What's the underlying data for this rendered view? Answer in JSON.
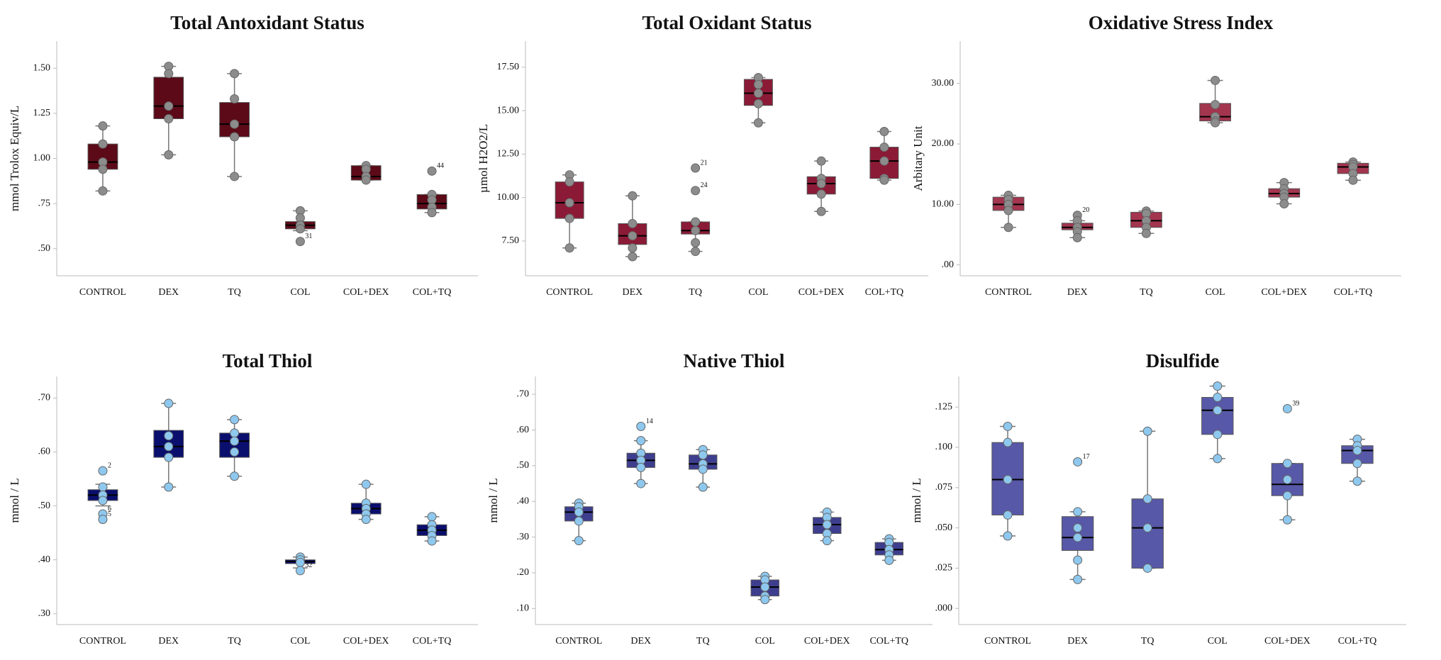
{
  "chart_data": [
    {
      "type": "box",
      "title": "Total Antoxidant Status",
      "ylabel": "mmol Trolox Equiv/L",
      "color": "#5c0a18",
      "point_color": "#8c8c8c",
      "categories": [
        "CONTROL",
        "DEX",
        "TQ",
        "COL",
        "COL+DEX",
        "COL+TQ"
      ],
      "ylim": [
        0.35,
        1.65
      ],
      "yticks": [
        {
          "value": 0.5,
          "label": ".50"
        },
        {
          "value": 0.75,
          "label": ".75"
        },
        {
          "value": 1,
          "label": "1.00"
        },
        {
          "value": 1.25,
          "label": "1.25"
        },
        {
          "value": 1.5,
          "label": "1.50"
        }
      ],
      "boxes": [
        {
          "low": 0.82,
          "q1": 0.94,
          "median": 0.98,
          "q3": 1.08,
          "high": 1.18
        },
        {
          "low": 1.02,
          "q1": 1.22,
          "median": 1.29,
          "q3": 1.45,
          "high": 1.51
        },
        {
          "low": 0.9,
          "q1": 1.12,
          "median": 1.19,
          "q3": 1.31,
          "high": 1.47
        },
        {
          "low": 0.6,
          "q1": 0.61,
          "median": 0.63,
          "q3": 0.65,
          "high": 0.71
        },
        {
          "low": 0.88,
          "q1": 0.88,
          "median": 0.9,
          "q3": 0.96,
          "high": 0.96
        },
        {
          "low": 0.7,
          "q1": 0.72,
          "median": 0.75,
          "q3": 0.8,
          "high": 0.8
        }
      ],
      "points": [
        [
          1.18,
          1.08,
          0.98,
          0.94,
          0.82
        ],
        [
          1.51,
          1.47,
          1.29,
          1.22,
          1.02
        ],
        [
          1.47,
          1.33,
          1.19,
          1.12,
          0.9
        ],
        [
          0.71,
          0.67,
          0.63,
          0.61,
          0.54
        ],
        [
          0.96,
          0.94,
          0.9,
          0.88
        ],
        [
          0.93,
          0.8,
          0.77,
          0.73,
          0.7
        ]
      ],
      "point_labels": [
        [
          null,
          null,
          null,
          null,
          null
        ],
        [
          null,
          null,
          null,
          null,
          null
        ],
        [
          null,
          null,
          null,
          null,
          null
        ],
        [
          null,
          null,
          null,
          null,
          "31"
        ],
        [
          null,
          null,
          null,
          null
        ],
        [
          "44",
          null,
          null,
          null,
          null
        ]
      ]
    },
    {
      "type": "box",
      "title": "Total Oxidant Status",
      "ylabel": "µmol H2O2/L",
      "color": "#8b1a36",
      "point_color": "#8c8c8c",
      "categories": [
        "CONTROL",
        "DEX",
        "TQ",
        "COL",
        "COL+DEX",
        "COL+TQ"
      ],
      "ylim": [
        5.5,
        19
      ],
      "yticks": [
        {
          "value": 7.5,
          "label": "7.50"
        },
        {
          "value": 10,
          "label": "10.00"
        },
        {
          "value": 12.5,
          "label": "12.50"
        },
        {
          "value": 15,
          "label": "15.00"
        },
        {
          "value": 17.5,
          "label": "17.50"
        }
      ],
      "boxes": [
        {
          "low": 7.1,
          "q1": 8.8,
          "median": 9.7,
          "q3": 10.9,
          "high": 11.3
        },
        {
          "low": 6.6,
          "q1": 7.3,
          "median": 7.8,
          "q3": 8.5,
          "high": 10.1
        },
        {
          "low": 6.9,
          "q1": 7.9,
          "median": 8.1,
          "q3": 8.6,
          "high": 8.6
        },
        {
          "low": 14.3,
          "q1": 15.3,
          "median": 16,
          "q3": 16.8,
          "high": 16.9
        },
        {
          "low": 9.2,
          "q1": 10.2,
          "median": 10.8,
          "q3": 11.2,
          "high": 12.1
        },
        {
          "low": 11,
          "q1": 11.1,
          "median": 12.1,
          "q3": 12.9,
          "high": 13.8
        }
      ],
      "points": [
        [
          11.3,
          10.9,
          9.7,
          8.8,
          7.1
        ],
        [
          10.1,
          8.5,
          7.8,
          7.1,
          6.6
        ],
        [
          11.7,
          10.4,
          8.6,
          8.1,
          7.4,
          6.9
        ],
        [
          16.9,
          16.5,
          16,
          15.4,
          14.3
        ],
        [
          12.1,
          11.1,
          10.8,
          10.2,
          9.2
        ],
        [
          13.8,
          12.9,
          12.1,
          11.1,
          11
        ]
      ],
      "point_labels": [
        [
          null,
          null,
          null,
          null,
          null
        ],
        [
          null,
          null,
          null,
          null,
          null
        ],
        [
          "21",
          "24",
          null,
          null,
          null,
          null
        ],
        [
          null,
          null,
          null,
          null,
          null
        ],
        [
          null,
          null,
          null,
          null,
          null
        ],
        [
          null,
          null,
          null,
          null,
          null
        ]
      ]
    },
    {
      "type": "box",
      "title": "Oxidative Stress Index",
      "ylabel": "Arbitary Unit",
      "color": "#a3354f",
      "point_color": "#8c8c8c",
      "categories": [
        "CONTROL",
        "DEX",
        "TQ",
        "COL",
        "COL+DEX",
        "COL+TQ"
      ],
      "ylim": [
        -1.8,
        37
      ],
      "yticks": [
        {
          "value": 0,
          "label": ".00"
        },
        {
          "value": 10,
          "label": "10.00"
        },
        {
          "value": 20,
          "label": "20.00"
        },
        {
          "value": 30,
          "label": "30.00"
        }
      ],
      "boxes": [
        {
          "low": 6.2,
          "q1": 9,
          "median": 10,
          "q3": 11.2,
          "high": 11.5
        },
        {
          "low": 4.5,
          "q1": 5.8,
          "median": 6.2,
          "q3": 6.9,
          "high": 7.3
        },
        {
          "low": 5.2,
          "q1": 6.2,
          "median": 7.3,
          "q3": 8.7,
          "high": 8.9
        },
        {
          "low": 23.5,
          "q1": 23.8,
          "median": 24.5,
          "q3": 26.7,
          "high": 30.5
        },
        {
          "low": 10.1,
          "q1": 11.2,
          "median": 11.8,
          "q3": 12.6,
          "high": 13.6
        },
        {
          "low": 14,
          "q1": 15.1,
          "median": 16.2,
          "q3": 16.8,
          "high": 17
        }
      ],
      "points": [
        [
          11.5,
          10.8,
          10,
          9,
          6.2
        ],
        [
          8.2,
          7.3,
          6.2,
          5.5,
          4.5
        ],
        [
          8.9,
          8.5,
          7.3,
          6.2,
          5.2
        ],
        [
          30.5,
          26.5,
          24.5,
          23.8,
          23.5
        ],
        [
          13.6,
          12.6,
          11.8,
          11.2,
          10.1
        ],
        [
          17,
          16.6,
          16.2,
          15.1,
          14
        ]
      ],
      "point_labels": [
        [
          null,
          null,
          null,
          null,
          null
        ],
        [
          "20",
          null,
          null,
          null,
          null
        ],
        [
          null,
          null,
          null,
          null,
          null
        ],
        [
          null,
          null,
          null,
          null,
          null
        ],
        [
          null,
          null,
          null,
          null,
          null
        ],
        [
          null,
          null,
          null,
          null,
          null
        ]
      ]
    },
    {
      "type": "box",
      "title": "Total Thiol",
      "ylabel": "mmol / L",
      "color": "#0a0f6e",
      "point_color": "#8ec8ee",
      "categories": [
        "CONTROL",
        "DEX",
        "TQ",
        "COL",
        "COL+DEX",
        "COL+TQ"
      ],
      "ylim": [
        0.28,
        0.74
      ],
      "yticks": [
        {
          "value": 0.3,
          "label": ".30"
        },
        {
          "value": 0.4,
          "label": ".40"
        },
        {
          "value": 0.5,
          "label": ".50"
        },
        {
          "value": 0.6,
          "label": ".60"
        },
        {
          "value": 0.7,
          "label": ".70"
        }
      ],
      "boxes": [
        {
          "low": 0.5,
          "q1": 0.51,
          "median": 0.52,
          "q3": 0.53,
          "high": 0.54
        },
        {
          "low": 0.535,
          "q1": 0.59,
          "median": 0.61,
          "q3": 0.64,
          "high": 0.69
        },
        {
          "low": 0.555,
          "q1": 0.59,
          "median": 0.62,
          "q3": 0.635,
          "high": 0.66
        },
        {
          "low": 0.385,
          "q1": 0.393,
          "median": 0.397,
          "q3": 0.4,
          "high": 0.405
        },
        {
          "low": 0.475,
          "q1": 0.485,
          "median": 0.495,
          "q3": 0.505,
          "high": 0.54
        },
        {
          "low": 0.435,
          "q1": 0.445,
          "median": 0.455,
          "q3": 0.465,
          "high": 0.48
        }
      ],
      "points": [
        [
          0.565,
          0.535,
          0.52,
          0.51,
          0.485,
          0.475
        ],
        [
          0.69,
          0.63,
          0.61,
          0.59,
          0.535
        ],
        [
          0.66,
          0.635,
          0.62,
          0.6,
          0.555
        ],
        [
          0.405,
          0.4,
          0.395,
          0.38
        ],
        [
          0.54,
          0.505,
          0.495,
          0.485,
          0.475
        ],
        [
          0.48,
          0.465,
          0.455,
          0.445,
          0.435
        ]
      ],
      "point_labels": [
        [
          "2",
          null,
          null,
          null,
          "6",
          "5"
        ],
        [
          null,
          null,
          null,
          null,
          null
        ],
        [
          null,
          null,
          null,
          null,
          null
        ],
        [
          null,
          null,
          null,
          "32"
        ],
        [
          null,
          null,
          null,
          null,
          null
        ],
        [
          null,
          null,
          null,
          null,
          null
        ]
      ]
    },
    {
      "type": "box",
      "title": "Native Thiol",
      "ylabel": "mmol / L",
      "color": "#3e3e8f",
      "point_color": "#8ec8ee",
      "categories": [
        "CONTROL",
        "DEX",
        "TQ",
        "COL",
        "COL+DEX",
        "COL+TQ"
      ],
      "ylim": [
        0.055,
        0.75
      ],
      "yticks": [
        {
          "value": 0.1,
          "label": ".10"
        },
        {
          "value": 0.2,
          "label": ".20"
        },
        {
          "value": 0.3,
          "label": ".30"
        },
        {
          "value": 0.4,
          "label": ".40"
        },
        {
          "value": 0.5,
          "label": ".50"
        },
        {
          "value": 0.6,
          "label": ".60"
        },
        {
          "value": 0.7,
          "label": ".70"
        }
      ],
      "boxes": [
        {
          "low": 0.29,
          "q1": 0.345,
          "median": 0.37,
          "q3": 0.385,
          "high": 0.395
        },
        {
          "low": 0.45,
          "q1": 0.495,
          "median": 0.515,
          "q3": 0.535,
          "high": 0.57
        },
        {
          "low": 0.44,
          "q1": 0.49,
          "median": 0.505,
          "q3": 0.53,
          "high": 0.545
        },
        {
          "low": 0.125,
          "q1": 0.135,
          "median": 0.16,
          "q3": 0.18,
          "high": 0.19
        },
        {
          "low": 0.29,
          "q1": 0.31,
          "median": 0.335,
          "q3": 0.355,
          "high": 0.37
        },
        {
          "low": 0.235,
          "q1": 0.25,
          "median": 0.265,
          "q3": 0.285,
          "high": 0.295
        }
      ],
      "points": [
        [
          0.395,
          0.385,
          0.37,
          0.345,
          0.29
        ],
        [
          0.61,
          0.57,
          0.535,
          0.515,
          0.495,
          0.45
        ],
        [
          0.545,
          0.53,
          0.505,
          0.49,
          0.44
        ],
        [
          0.19,
          0.18,
          0.16,
          0.135,
          0.125
        ],
        [
          0.37,
          0.355,
          0.335,
          0.31,
          0.29
        ],
        [
          0.295,
          0.285,
          0.265,
          0.25,
          0.235
        ]
      ],
      "point_labels": [
        [
          null,
          null,
          null,
          null,
          null
        ],
        [
          "14",
          null,
          null,
          null,
          null,
          null
        ],
        [
          null,
          null,
          null,
          null,
          null
        ],
        [
          null,
          null,
          null,
          null,
          null
        ],
        [
          null,
          null,
          null,
          null,
          null
        ],
        [
          null,
          null,
          null,
          null,
          null
        ]
      ]
    },
    {
      "type": "box",
      "title": "Disulfide",
      "ylabel": "mmol / L",
      "color": "#5858a8",
      "point_color": "#8ec8ee",
      "categories": [
        "CONTROL",
        "DEX",
        "TQ",
        "COL",
        "COL+DEX",
        "COL+TQ"
      ],
      "ylim": [
        -0.01,
        0.144
      ],
      "yticks": [
        {
          "value": 0,
          "label": ".000"
        },
        {
          "value": 0.025,
          "label": ".025"
        },
        {
          "value": 0.05,
          "label": ".050"
        },
        {
          "value": 0.075,
          "label": ".075"
        },
        {
          "value": 0.1,
          "label": ".100"
        },
        {
          "value": 0.125,
          "label": ".125"
        }
      ],
      "boxes": [
        {
          "low": 0.045,
          "q1": 0.058,
          "median": 0.08,
          "q3": 0.103,
          "high": 0.113
        },
        {
          "low": 0.018,
          "q1": 0.036,
          "median": 0.044,
          "q3": 0.057,
          "high": 0.06
        },
        {
          "low": 0.025,
          "q1": 0.025,
          "median": 0.05,
          "q3": 0.068,
          "high": 0.11
        },
        {
          "low": 0.093,
          "q1": 0.108,
          "median": 0.123,
          "q3": 0.131,
          "high": 0.138
        },
        {
          "low": 0.055,
          "q1": 0.07,
          "median": 0.077,
          "q3": 0.09,
          "high": 0.09
        },
        {
          "low": 0.079,
          "q1": 0.09,
          "median": 0.098,
          "q3": 0.101,
          "high": 0.105
        }
      ],
      "points": [
        [
          0.113,
          0.103,
          0.08,
          0.058,
          0.045
        ],
        [
          0.091,
          0.06,
          0.05,
          0.044,
          0.03,
          0.018
        ],
        [
          0.11,
          0.068,
          0.05,
          0.025
        ],
        [
          0.138,
          0.131,
          0.123,
          0.108,
          0.093
        ],
        [
          0.124,
          0.09,
          0.08,
          0.07,
          0.055
        ],
        [
          0.105,
          0.101,
          0.098,
          0.09,
          0.079
        ]
      ],
      "point_labels": [
        [
          null,
          null,
          null,
          null,
          null
        ],
        [
          "17",
          null,
          null,
          null,
          null,
          null
        ],
        [
          null,
          null,
          null,
          null
        ],
        [
          null,
          null,
          null,
          null,
          null
        ],
        [
          "39",
          null,
          null,
          null,
          null
        ],
        [
          null,
          null,
          null,
          null,
          null
        ]
      ]
    }
  ]
}
